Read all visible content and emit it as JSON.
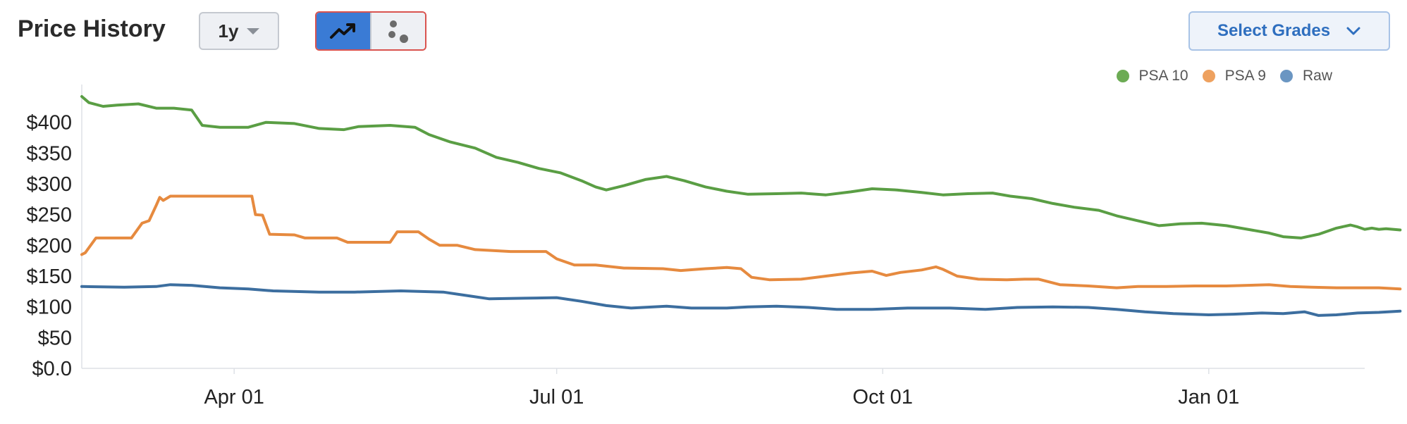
{
  "header": {
    "title": "Price History",
    "range_label": "1y",
    "select_grades_label": "Select Grades"
  },
  "colors": {
    "psa10": "#5a9e44",
    "psa9": "#e68a3f",
    "raw": "#3c6e9f",
    "toggle_active": "#3a7bd5"
  },
  "icons": {
    "line_view": "trend-line-icon",
    "scatter_view": "scatter-dots-icon",
    "dropdown": "chevron-down-icon"
  },
  "chart_data": {
    "type": "line",
    "title": "Price History",
    "xlabel": "",
    "ylabel": "",
    "ylim": [
      0,
      450
    ],
    "y_ticks": [
      0,
      50,
      100,
      150,
      200,
      250,
      300,
      350,
      400
    ],
    "y_tick_labels": [
      "$0.0",
      "$50",
      "$100",
      "$150",
      "$200",
      "$250",
      "$300",
      "$350",
      "$400"
    ],
    "x_range": [
      "2024-02-18",
      "2025-02-14"
    ],
    "x_ticks": [
      "2024-04-01",
      "2024-07-01",
      "2024-10-01",
      "2025-01-01"
    ],
    "x_tick_labels": [
      "Apr 01",
      "Jul 01",
      "Oct 01",
      "Jan 01"
    ],
    "grid": false,
    "legend_position": "top-right",
    "series": [
      {
        "name": "PSA 10",
        "color": "#5a9e44",
        "points": [
          [
            "2024-02-18",
            442
          ],
          [
            "2024-02-20",
            432
          ],
          [
            "2024-02-24",
            426
          ],
          [
            "2024-02-28",
            428
          ],
          [
            "2024-03-05",
            430
          ],
          [
            "2024-03-10",
            423
          ],
          [
            "2024-03-15",
            423
          ],
          [
            "2024-03-20",
            420
          ],
          [
            "2024-03-23",
            395
          ],
          [
            "2024-03-28",
            392
          ],
          [
            "2024-04-05",
            392
          ],
          [
            "2024-04-10",
            400
          ],
          [
            "2024-04-18",
            398
          ],
          [
            "2024-04-25",
            390
          ],
          [
            "2024-05-02",
            388
          ],
          [
            "2024-05-06",
            393
          ],
          [
            "2024-05-15",
            395
          ],
          [
            "2024-05-22",
            392
          ],
          [
            "2024-05-26",
            380
          ],
          [
            "2024-06-01",
            368
          ],
          [
            "2024-06-08",
            358
          ],
          [
            "2024-06-14",
            343
          ],
          [
            "2024-06-20",
            335
          ],
          [
            "2024-06-26",
            325
          ],
          [
            "2024-07-02",
            318
          ],
          [
            "2024-07-08",
            305
          ],
          [
            "2024-07-12",
            295
          ],
          [
            "2024-07-15",
            290
          ],
          [
            "2024-07-20",
            297
          ],
          [
            "2024-07-26",
            307
          ],
          [
            "2024-08-01",
            312
          ],
          [
            "2024-08-06",
            305
          ],
          [
            "2024-08-12",
            295
          ],
          [
            "2024-08-18",
            288
          ],
          [
            "2024-08-24",
            283
          ],
          [
            "2024-09-01",
            284
          ],
          [
            "2024-09-08",
            285
          ],
          [
            "2024-09-15",
            282
          ],
          [
            "2024-09-22",
            287
          ],
          [
            "2024-09-28",
            292
          ],
          [
            "2024-10-05",
            290
          ],
          [
            "2024-10-12",
            286
          ],
          [
            "2024-10-18",
            282
          ],
          [
            "2024-10-25",
            284
          ],
          [
            "2024-11-01",
            285
          ],
          [
            "2024-11-06",
            280
          ],
          [
            "2024-11-12",
            276
          ],
          [
            "2024-11-18",
            268
          ],
          [
            "2024-11-24",
            262
          ],
          [
            "2024-12-01",
            257
          ],
          [
            "2024-12-06",
            248
          ],
          [
            "2024-12-12",
            240
          ],
          [
            "2024-12-18",
            232
          ],
          [
            "2024-12-24",
            235
          ],
          [
            "2024-12-30",
            236
          ],
          [
            "2025-01-06",
            232
          ],
          [
            "2025-01-12",
            226
          ],
          [
            "2025-01-18",
            220
          ],
          [
            "2025-01-22",
            214
          ],
          [
            "2025-01-27",
            212
          ],
          [
            "2025-02-01",
            218
          ],
          [
            "2025-02-06",
            228
          ],
          [
            "2025-02-10",
            233
          ],
          [
            "2025-02-12",
            230
          ],
          [
            "2025-02-14",
            226
          ],
          [
            "2025-02-16",
            228
          ],
          [
            "2025-02-18",
            226
          ],
          [
            "2025-02-20",
            227
          ],
          [
            "2025-02-24",
            225
          ]
        ]
      },
      {
        "name": "PSA 9",
        "color": "#e68a3f",
        "points": [
          [
            "2024-02-18",
            185
          ],
          [
            "2024-02-19",
            188
          ],
          [
            "2024-02-22",
            212
          ],
          [
            "2024-03-03",
            212
          ],
          [
            "2024-03-06",
            236
          ],
          [
            "2024-03-08",
            240
          ],
          [
            "2024-03-10",
            265
          ],
          [
            "2024-03-11",
            278
          ],
          [
            "2024-03-12",
            273
          ],
          [
            "2024-03-14",
            280
          ],
          [
            "2024-04-06",
            280
          ],
          [
            "2024-04-07",
            250
          ],
          [
            "2024-04-09",
            249
          ],
          [
            "2024-04-11",
            218
          ],
          [
            "2024-04-18",
            217
          ],
          [
            "2024-04-21",
            212
          ],
          [
            "2024-04-30",
            212
          ],
          [
            "2024-05-03",
            205
          ],
          [
            "2024-05-15",
            205
          ],
          [
            "2024-05-17",
            222
          ],
          [
            "2024-05-23",
            222
          ],
          [
            "2024-05-26",
            210
          ],
          [
            "2024-05-29",
            200
          ],
          [
            "2024-06-03",
            200
          ],
          [
            "2024-06-08",
            193
          ],
          [
            "2024-06-18",
            190
          ],
          [
            "2024-06-28",
            190
          ],
          [
            "2024-07-01",
            178
          ],
          [
            "2024-07-06",
            168
          ],
          [
            "2024-07-12",
            168
          ],
          [
            "2024-07-20",
            163
          ],
          [
            "2024-07-31",
            162
          ],
          [
            "2024-08-05",
            159
          ],
          [
            "2024-08-12",
            162
          ],
          [
            "2024-08-18",
            164
          ],
          [
            "2024-08-22",
            162
          ],
          [
            "2024-08-25",
            148
          ],
          [
            "2024-08-30",
            144
          ],
          [
            "2024-09-08",
            145
          ],
          [
            "2024-09-15",
            150
          ],
          [
            "2024-09-22",
            155
          ],
          [
            "2024-09-28",
            158
          ],
          [
            "2024-10-02",
            151
          ],
          [
            "2024-10-06",
            156
          ],
          [
            "2024-10-12",
            160
          ],
          [
            "2024-10-16",
            165
          ],
          [
            "2024-10-18",
            161
          ],
          [
            "2024-10-22",
            150
          ],
          [
            "2024-10-28",
            145
          ],
          [
            "2024-11-05",
            144
          ],
          [
            "2024-11-10",
            145
          ],
          [
            "2024-11-14",
            145
          ],
          [
            "2024-11-20",
            136
          ],
          [
            "2024-11-28",
            134
          ],
          [
            "2024-12-06",
            131
          ],
          [
            "2024-12-12",
            133
          ],
          [
            "2024-12-20",
            133
          ],
          [
            "2024-12-28",
            134
          ],
          [
            "2025-01-06",
            134
          ],
          [
            "2025-01-12",
            135
          ],
          [
            "2025-01-18",
            136
          ],
          [
            "2025-01-24",
            133
          ],
          [
            "2025-01-30",
            132
          ],
          [
            "2025-02-06",
            131
          ],
          [
            "2025-02-12",
            131
          ],
          [
            "2025-02-18",
            131
          ],
          [
            "2025-02-24",
            129
          ]
        ]
      },
      {
        "name": "Raw",
        "color": "#3c6e9f",
        "points": [
          [
            "2024-02-18",
            133
          ],
          [
            "2024-03-01",
            132
          ],
          [
            "2024-03-10",
            133
          ],
          [
            "2024-03-14",
            136
          ],
          [
            "2024-03-20",
            135
          ],
          [
            "2024-03-28",
            131
          ],
          [
            "2024-04-05",
            129
          ],
          [
            "2024-04-12",
            126
          ],
          [
            "2024-04-25",
            124
          ],
          [
            "2024-05-05",
            124
          ],
          [
            "2024-05-18",
            126
          ],
          [
            "2024-05-30",
            124
          ],
          [
            "2024-06-06",
            118
          ],
          [
            "2024-06-12",
            113
          ],
          [
            "2024-06-22",
            114
          ],
          [
            "2024-07-01",
            115
          ],
          [
            "2024-07-08",
            109
          ],
          [
            "2024-07-15",
            102
          ],
          [
            "2024-07-22",
            98
          ],
          [
            "2024-08-01",
            101
          ],
          [
            "2024-08-08",
            98
          ],
          [
            "2024-08-18",
            98
          ],
          [
            "2024-08-24",
            100
          ],
          [
            "2024-09-01",
            101
          ],
          [
            "2024-09-10",
            99
          ],
          [
            "2024-09-18",
            96
          ],
          [
            "2024-09-28",
            96
          ],
          [
            "2024-10-08",
            98
          ],
          [
            "2024-10-20",
            98
          ],
          [
            "2024-10-30",
            96
          ],
          [
            "2024-11-08",
            99
          ],
          [
            "2024-11-18",
            100
          ],
          [
            "2024-11-28",
            99
          ],
          [
            "2024-12-06",
            96
          ],
          [
            "2024-12-14",
            92
          ],
          [
            "2024-12-22",
            89
          ],
          [
            "2025-01-01",
            87
          ],
          [
            "2025-01-08",
            88
          ],
          [
            "2025-01-16",
            90
          ],
          [
            "2025-01-22",
            89
          ],
          [
            "2025-01-28",
            92
          ],
          [
            "2025-02-01",
            86
          ],
          [
            "2025-02-06",
            87
          ],
          [
            "2025-02-12",
            90
          ],
          [
            "2025-02-18",
            91
          ],
          [
            "2025-02-24",
            93
          ]
        ]
      }
    ]
  }
}
